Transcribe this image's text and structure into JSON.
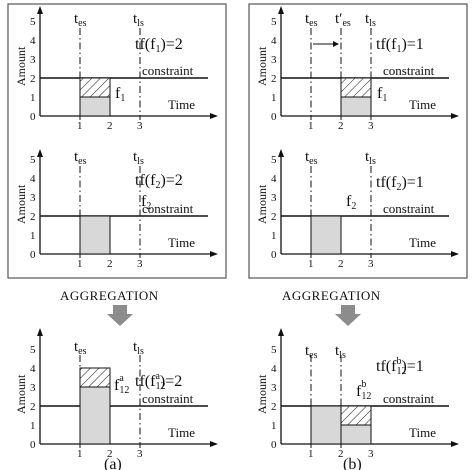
{
  "aggregation_label": "AGGREGATION",
  "caption_a": "(a)",
  "caption_b": "(b)",
  "common": {
    "amount_label": "Amount",
    "time_label": "Time",
    "constraint_label": "constraint",
    "y_ticks": [
      "0",
      "1",
      "2",
      "3",
      "4",
      "5"
    ]
  },
  "panels": [
    {
      "id": "a1",
      "tes": "t",
      "tes_sub": "es",
      "tls": "t",
      "tls_sub": "ls",
      "tf": "tf(f",
      "tf_sub": "1",
      "tf_val": ")=2",
      "f": "f",
      "f_sub": "1",
      "f_sup": "",
      "x_ticks": [
        "1",
        "2",
        "3"
      ]
    },
    {
      "id": "a2",
      "tes": "t",
      "tes_sub": "es",
      "tls": "t",
      "tls_sub": "ls",
      "tf": "tf(f",
      "tf_sub": "2",
      "tf_val": ")=2",
      "f": "f",
      "f_sub": "2",
      "f_sup": "",
      "x_ticks": [
        "1",
        "2",
        "3"
      ]
    },
    {
      "id": "a3",
      "tes": "t",
      "tes_sub": "es",
      "tls": "t",
      "tls_sub": "ls",
      "tf": "tf(f",
      "tf_sub": "12",
      "tf_sup": "a",
      "tf_val": ")=2",
      "f": "f",
      "f_sub": "12",
      "f_sup": "a",
      "x_ticks": [
        "1",
        "2",
        "3"
      ]
    },
    {
      "id": "b1",
      "tes": "t",
      "tes_sub": "es",
      "tes2": "t′",
      "tes2_sub": "es",
      "tls": "t",
      "tls_sub": "ls",
      "tf": "tf(f",
      "tf_sub": "1",
      "tf_val": ")=1",
      "f": "f",
      "f_sub": "1",
      "f_sup": "",
      "x_ticks": [
        "1",
        "2",
        "3"
      ]
    },
    {
      "id": "b2",
      "tes": "t",
      "tes_sub": "es",
      "tls": "t",
      "tls_sub": "ls",
      "tf": "tf(f",
      "tf_sub": "2",
      "tf_val": ")=1",
      "f": "f",
      "f_sub": "2",
      "f_sup": "",
      "x_ticks": [
        "1",
        "2",
        "3"
      ]
    },
    {
      "id": "b3",
      "tes": "t",
      "tes_sub": "es",
      "tls": "t",
      "tls_sub": "ls",
      "tf": "tf(f",
      "tf_sub": "12",
      "tf_sup": "b",
      "tf_val": ")=1",
      "f": "f",
      "f_sub": "12",
      "f_sup": "b",
      "x_ticks": [
        "1",
        "2",
        "3"
      ]
    }
  ]
}
